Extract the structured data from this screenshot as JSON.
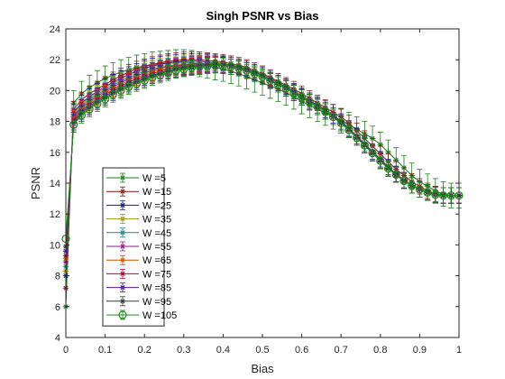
{
  "chart_data": {
    "type": "line",
    "title": "Singh PSNR vs Bias",
    "xlabel": "Bias",
    "ylabel": "PSNR",
    "xlim": [
      0,
      1
    ],
    "ylim": [
      4,
      24
    ],
    "xticks": [
      "0",
      "0.1",
      "0.2",
      "0.3",
      "0.4",
      "0.5",
      "0.6",
      "0.7",
      "0.8",
      "0.9",
      "1"
    ],
    "yticks": [
      "4",
      "6",
      "8",
      "10",
      "12",
      "14",
      "16",
      "18",
      "20",
      "22",
      "24"
    ],
    "grid": false,
    "legend_position": "bottom-left",
    "error_bars": true,
    "x": [
      0,
      0.02,
      0.04,
      0.06,
      0.08,
      0.1,
      0.12,
      0.14,
      0.16,
      0.18,
      0.2,
      0.22,
      0.24,
      0.26,
      0.28,
      0.3,
      0.32,
      0.34,
      0.36,
      0.38,
      0.4,
      0.42,
      0.44,
      0.46,
      0.48,
      0.5,
      0.52,
      0.54,
      0.56,
      0.58,
      0.6,
      0.62,
      0.64,
      0.66,
      0.68,
      0.7,
      0.72,
      0.74,
      0.76,
      0.78,
      0.8,
      0.82,
      0.84,
      0.86,
      0.88,
      0.9,
      0.92,
      0.94,
      0.96,
      0.98,
      1
    ],
    "series": [
      {
        "name": "W =5",
        "color": "#1a7f1a",
        "marker": "asterisk",
        "error": 0.8,
        "values": [
          6.0,
          19.2,
          19.8,
          20.2,
          20.5,
          20.8,
          21.0,
          21.2,
          21.35,
          21.5,
          21.6,
          21.7,
          21.75,
          21.8,
          21.85,
          21.85,
          21.8,
          21.7,
          21.6,
          21.5,
          21.4,
          21.25,
          21.1,
          20.9,
          20.7,
          20.5,
          20.3,
          20.1,
          19.85,
          19.6,
          19.3,
          19.05,
          18.8,
          18.55,
          18.3,
          18.05,
          17.8,
          17.5,
          17.2,
          16.9,
          16.5,
          16.0,
          15.5,
          15.0,
          14.5,
          14.1,
          13.8,
          13.5,
          13.3,
          13.2,
          13.2
        ]
      },
      {
        "name": "W =15",
        "color": "#8b1a1a",
        "marker": "asterisk",
        "error": 0.5,
        "values": [
          7.2,
          18.8,
          19.4,
          19.8,
          20.1,
          20.4,
          20.7,
          20.95,
          21.2,
          21.4,
          21.55,
          21.7,
          21.8,
          21.9,
          21.95,
          22.0,
          22.0,
          22.0,
          21.95,
          21.9,
          21.85,
          21.75,
          21.65,
          21.5,
          21.3,
          21.1,
          20.85,
          20.6,
          20.35,
          20.1,
          19.8,
          19.5,
          19.2,
          18.9,
          18.6,
          18.3,
          17.9,
          17.4,
          16.9,
          16.4,
          15.9,
          15.4,
          14.9,
          14.5,
          14.1,
          13.8,
          13.5,
          13.3,
          13.2,
          13.2,
          13.2
        ]
      },
      {
        "name": "W =25",
        "color": "#1a1a8b",
        "marker": "asterisk",
        "error": 0.5,
        "values": [
          8.0,
          18.6,
          19.2,
          19.6,
          19.95,
          20.25,
          20.55,
          20.8,
          21.05,
          21.25,
          21.45,
          21.6,
          21.7,
          21.8,
          21.85,
          21.9,
          21.9,
          21.9,
          21.85,
          21.8,
          21.75,
          21.65,
          21.55,
          21.4,
          21.2,
          21.0,
          20.75,
          20.5,
          20.25,
          19.95,
          19.65,
          19.35,
          19.05,
          18.75,
          18.4,
          18.0,
          17.55,
          17.05,
          16.55,
          16.05,
          15.55,
          15.05,
          14.6,
          14.2,
          13.85,
          13.6,
          13.4,
          13.25,
          13.2,
          13.2,
          13.2
        ]
      },
      {
        "name": "W =35",
        "color": "#9a9a1a",
        "marker": "asterisk",
        "error": 0.5,
        "values": [
          8.3,
          18.5,
          19.1,
          19.5,
          19.85,
          20.15,
          20.45,
          20.7,
          20.95,
          21.15,
          21.35,
          21.5,
          21.6,
          21.7,
          21.75,
          21.8,
          21.8,
          21.8,
          21.75,
          21.7,
          21.65,
          21.55,
          21.45,
          21.3,
          21.1,
          20.9,
          20.65,
          20.4,
          20.15,
          19.85,
          19.55,
          19.25,
          18.95,
          18.65,
          18.3,
          17.9,
          17.45,
          16.95,
          16.45,
          15.95,
          15.45,
          14.95,
          14.55,
          14.15,
          13.85,
          13.6,
          13.4,
          13.25,
          13.2,
          13.2,
          13.2
        ]
      },
      {
        "name": "W =45",
        "color": "#1a8b8b",
        "marker": "asterisk",
        "error": 0.5,
        "values": [
          8.6,
          18.4,
          19.0,
          19.4,
          19.75,
          20.05,
          20.35,
          20.6,
          20.85,
          21.05,
          21.25,
          21.4,
          21.5,
          21.6,
          21.65,
          21.7,
          21.75,
          21.75,
          21.75,
          21.7,
          21.65,
          21.55,
          21.45,
          21.3,
          21.1,
          20.9,
          20.65,
          20.4,
          20.15,
          19.85,
          19.55,
          19.25,
          18.95,
          18.65,
          18.3,
          17.9,
          17.45,
          16.95,
          16.45,
          15.95,
          15.45,
          14.95,
          14.55,
          14.15,
          13.85,
          13.6,
          13.4,
          13.25,
          13.2,
          13.2,
          13.2
        ]
      },
      {
        "name": "W =55",
        "color": "#8b1a8b",
        "marker": "asterisk",
        "error": 0.5,
        "values": [
          8.9,
          18.3,
          18.9,
          19.3,
          19.65,
          19.95,
          20.25,
          20.5,
          20.75,
          20.95,
          21.15,
          21.3,
          21.45,
          21.55,
          21.6,
          21.65,
          21.7,
          21.75,
          21.75,
          21.7,
          21.65,
          21.55,
          21.45,
          21.3,
          21.1,
          20.9,
          20.65,
          20.4,
          20.15,
          19.85,
          19.55,
          19.25,
          18.95,
          18.65,
          18.3,
          17.9,
          17.45,
          16.95,
          16.45,
          15.95,
          15.45,
          14.95,
          14.55,
          14.15,
          13.85,
          13.6,
          13.4,
          13.25,
          13.2,
          13.2,
          13.2
        ]
      },
      {
        "name": "W =65",
        "color": "#cc5500",
        "marker": "asterisk",
        "error": 0.5,
        "values": [
          9.1,
          18.2,
          18.8,
          19.2,
          19.55,
          19.85,
          20.15,
          20.4,
          20.65,
          20.85,
          21.05,
          21.2,
          21.35,
          21.45,
          21.55,
          21.6,
          21.65,
          21.7,
          21.7,
          21.7,
          21.65,
          21.55,
          21.45,
          21.3,
          21.1,
          20.9,
          20.65,
          20.4,
          20.15,
          19.85,
          19.55,
          19.25,
          18.95,
          18.65,
          18.3,
          17.9,
          17.45,
          16.95,
          16.45,
          15.95,
          15.45,
          14.95,
          14.55,
          14.15,
          13.85,
          13.6,
          13.4,
          13.25,
          13.2,
          13.2,
          13.2
        ]
      },
      {
        "name": "W =75",
        "color": "#b8003c",
        "marker": "asterisk",
        "error": 0.5,
        "values": [
          9.3,
          18.1,
          18.7,
          19.1,
          19.45,
          19.75,
          20.05,
          20.3,
          20.55,
          20.75,
          20.95,
          21.1,
          21.25,
          21.4,
          21.5,
          21.55,
          21.6,
          21.65,
          21.7,
          21.7,
          21.65,
          21.55,
          21.45,
          21.3,
          21.1,
          20.9,
          20.65,
          20.4,
          20.15,
          19.85,
          19.55,
          19.25,
          18.95,
          18.65,
          18.3,
          17.9,
          17.45,
          16.95,
          16.45,
          15.95,
          15.45,
          14.95,
          14.55,
          14.15,
          13.85,
          13.6,
          13.4,
          13.25,
          13.2,
          13.2,
          13.2
        ]
      },
      {
        "name": "W =85",
        "color": "#4b1aa8",
        "marker": "asterisk",
        "error": 0.5,
        "values": [
          9.6,
          18.0,
          18.6,
          19.0,
          19.35,
          19.65,
          19.95,
          20.2,
          20.45,
          20.65,
          20.85,
          21.0,
          21.15,
          21.3,
          21.4,
          21.5,
          21.55,
          21.6,
          21.65,
          21.65,
          21.65,
          21.55,
          21.45,
          21.3,
          21.1,
          20.9,
          20.65,
          20.4,
          20.15,
          19.85,
          19.55,
          19.25,
          18.95,
          18.65,
          18.3,
          17.9,
          17.45,
          16.95,
          16.45,
          15.95,
          15.45,
          14.95,
          14.55,
          14.15,
          13.85,
          13.6,
          13.4,
          13.25,
          13.2,
          13.2,
          13.2
        ]
      },
      {
        "name": "W =95",
        "color": "#3a3a3a",
        "marker": "asterisk",
        "error": 0.5,
        "values": [
          9.9,
          17.9,
          18.5,
          18.9,
          19.25,
          19.55,
          19.85,
          20.1,
          20.35,
          20.55,
          20.75,
          20.95,
          21.1,
          21.25,
          21.35,
          21.45,
          21.5,
          21.55,
          21.6,
          21.65,
          21.65,
          21.55,
          21.45,
          21.3,
          21.1,
          20.9,
          20.65,
          20.4,
          20.15,
          19.85,
          19.55,
          19.25,
          18.95,
          18.65,
          18.3,
          17.9,
          17.45,
          16.95,
          16.45,
          15.95,
          15.45,
          14.95,
          14.55,
          14.15,
          13.85,
          13.6,
          13.4,
          13.25,
          13.2,
          13.2,
          13.2
        ]
      },
      {
        "name": "W =105",
        "color": "#1a8c1a",
        "marker": "circle",
        "error": 0.5,
        "values": [
          10.4,
          17.8,
          18.4,
          18.8,
          19.15,
          19.45,
          19.75,
          20.0,
          20.25,
          20.45,
          20.65,
          20.85,
          21.0,
          21.15,
          21.3,
          21.4,
          21.5,
          21.55,
          21.6,
          21.65,
          21.6,
          21.55,
          21.45,
          21.3,
          21.1,
          20.9,
          20.65,
          20.4,
          20.15,
          19.85,
          19.55,
          19.25,
          18.95,
          18.65,
          18.3,
          17.9,
          17.45,
          16.95,
          16.45,
          15.95,
          15.45,
          14.95,
          14.55,
          14.15,
          13.85,
          13.6,
          13.4,
          13.25,
          13.2,
          13.2,
          13.2
        ]
      }
    ]
  }
}
